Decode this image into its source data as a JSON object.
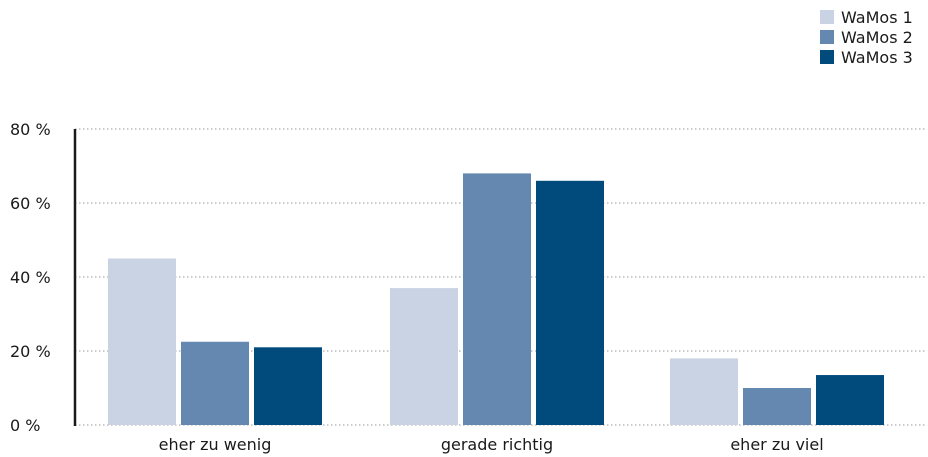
{
  "chart_data": {
    "type": "bar",
    "categories": [
      "eher zu wenig",
      "gerade richtig",
      "eher zu viel"
    ],
    "series": [
      {
        "name": "WaMos 1",
        "color": "#c9d3e3",
        "values": [
          45,
          37,
          18
        ]
      },
      {
        "name": "WaMos 2",
        "color": "#6588b0",
        "values": [
          22.5,
          68,
          10
        ]
      },
      {
        "name": "WaMos 3",
        "color": "#004a7c",
        "values": [
          21,
          66,
          13.5
        ]
      }
    ],
    "ylim": [
      0,
      80
    ],
    "yticks": [
      0,
      20,
      40,
      60,
      80
    ],
    "ytick_labels": [
      "0 %",
      "20 %",
      "40 %",
      "60 %",
      "80 %"
    ],
    "grid": true,
    "legend_position": "top-right"
  }
}
